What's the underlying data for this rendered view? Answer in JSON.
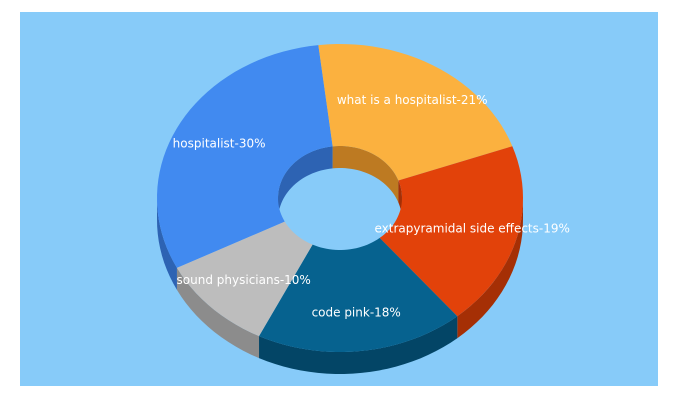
{
  "chart_data": {
    "type": "pie",
    "variant": "3d-donut",
    "background_color": "#87cbf9",
    "slices": [
      {
        "label": "hospitalist-30%",
        "category": "hospitalist",
        "value": 30,
        "color": "#418af0",
        "side_color": "#2d63b3"
      },
      {
        "label": "what is a hospitalist-21%",
        "category": "what is a hospitalist",
        "value": 21,
        "color": "#fbb13f",
        "side_color": "#bd7a22"
      },
      {
        "label": "extrapyramidal side effects-19%",
        "category": "extrapyramidal side effects",
        "value": 19,
        "color": "#e2420a",
        "side_color": "#a52f05"
      },
      {
        "label": "code pink-18%",
        "category": "code pink",
        "value": 18,
        "color": "#06628f",
        "side_color": "#034566"
      },
      {
        "label": "sound physicians-10%",
        "category": "sound physicians",
        "value": 10,
        "color": "#bdbdbd",
        "side_color": "#8c8c8c"
      }
    ]
  }
}
